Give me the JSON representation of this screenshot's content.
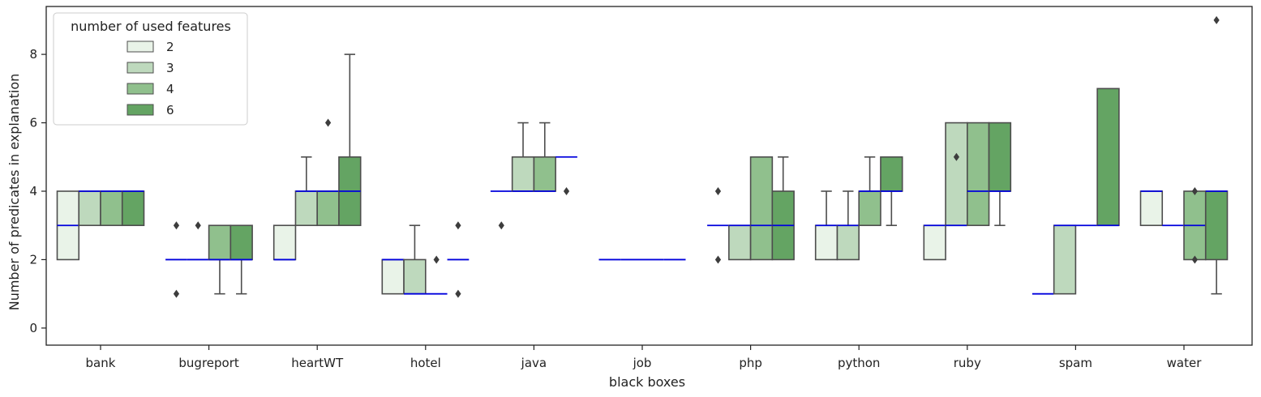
{
  "chart_data": {
    "type": "box",
    "xlabel": "black boxes",
    "ylabel": "Number of predicates in explanation",
    "ylim": [
      -0.5,
      9.4
    ],
    "yticks": [
      0,
      2,
      4,
      6,
      8
    ],
    "categories": [
      "bank",
      "bugreport",
      "heartWT",
      "hotel",
      "java",
      "job",
      "php",
      "python",
      "ruby",
      "spam",
      "water"
    ],
    "legend": {
      "title": "number of used features",
      "position": "top-left",
      "entries": [
        "2",
        "3",
        "4",
        "6"
      ]
    },
    "colors": {
      "2": "#e9f3e8",
      "3": "#bed9bd",
      "4": "#90c08d",
      "6": "#64a463",
      "median": "#0000dd",
      "edge": "#4d4d4d"
    },
    "series": [
      {
        "name": "2",
        "boxes": [
          {
            "q1": 2,
            "med": 3,
            "q3": 4,
            "lo": 2,
            "hi": 4,
            "fliers": []
          },
          {
            "q1": 2,
            "med": 2,
            "q3": 2,
            "lo": 2,
            "hi": 2,
            "fliers": [
              1,
              3
            ]
          },
          {
            "q1": 2,
            "med": 2,
            "q3": 3,
            "lo": 2,
            "hi": 3,
            "fliers": []
          },
          {
            "q1": 1,
            "med": 2,
            "q3": 2,
            "lo": 1,
            "hi": 2,
            "fliers": []
          },
          {
            "q1": 4,
            "med": 4,
            "q3": 4,
            "lo": 4,
            "hi": 4,
            "fliers": [
              3
            ]
          },
          {
            "q1": 2,
            "med": 2,
            "q3": 2,
            "lo": 2,
            "hi": 2,
            "fliers": []
          },
          {
            "q1": 3,
            "med": 3,
            "q3": 3,
            "lo": 3,
            "hi": 3,
            "fliers": [
              2,
              4
            ]
          },
          {
            "q1": 2,
            "med": 3,
            "q3": 3,
            "lo": 2,
            "hi": 4,
            "fliers": []
          },
          {
            "q1": 2,
            "med": 3,
            "q3": 3,
            "lo": 2,
            "hi": 3,
            "fliers": []
          },
          {
            "q1": 1,
            "med": 1,
            "q3": 1,
            "lo": 1,
            "hi": 1,
            "fliers": []
          },
          {
            "q1": 3,
            "med": 4,
            "q3": 4,
            "lo": 3,
            "hi": 4,
            "fliers": []
          }
        ]
      },
      {
        "name": "3",
        "boxes": [
          {
            "q1": 3,
            "med": 4,
            "q3": 4,
            "lo": 3,
            "hi": 4,
            "fliers": []
          },
          {
            "q1": 2,
            "med": 2,
            "q3": 2,
            "lo": 2,
            "hi": 2,
            "fliers": [
              3
            ]
          },
          {
            "q1": 3,
            "med": 4,
            "q3": 4,
            "lo": 3,
            "hi": 5,
            "fliers": []
          },
          {
            "q1": 1,
            "med": 1,
            "q3": 2,
            "lo": 1,
            "hi": 3,
            "fliers": []
          },
          {
            "q1": 4,
            "med": 4,
            "q3": 5,
            "lo": 4,
            "hi": 6,
            "fliers": []
          },
          {
            "q1": 2,
            "med": 2,
            "q3": 2,
            "lo": 2,
            "hi": 2,
            "fliers": []
          },
          {
            "q1": 2,
            "med": 3,
            "q3": 3,
            "lo": 2,
            "hi": 3,
            "fliers": []
          },
          {
            "q1": 2,
            "med": 3,
            "q3": 3,
            "lo": 2,
            "hi": 4,
            "fliers": []
          },
          {
            "q1": 3,
            "med": 3,
            "q3": 6,
            "lo": 3,
            "hi": 6,
            "fliers": [
              5
            ]
          },
          {
            "q1": 1,
            "med": 3,
            "q3": 3,
            "lo": 1,
            "hi": 3,
            "fliers": []
          },
          {
            "q1": 3,
            "med": 3,
            "q3": 3,
            "lo": 3,
            "hi": 3,
            "fliers": []
          }
        ]
      },
      {
        "name": "4",
        "boxes": [
          {
            "q1": 3,
            "med": 4,
            "q3": 4,
            "lo": 3,
            "hi": 4,
            "fliers": []
          },
          {
            "q1": 2,
            "med": 2,
            "q3": 3,
            "lo": 1,
            "hi": 3,
            "fliers": []
          },
          {
            "q1": 3,
            "med": 4,
            "q3": 4,
            "lo": 3,
            "hi": 4,
            "fliers": [
              6
            ]
          },
          {
            "q1": 1,
            "med": 1,
            "q3": 1,
            "lo": 1,
            "hi": 1,
            "fliers": [
              2
            ]
          },
          {
            "q1": 4,
            "med": 4,
            "q3": 5,
            "lo": 4,
            "hi": 6,
            "fliers": []
          },
          {
            "q1": 2,
            "med": 2,
            "q3": 2,
            "lo": 2,
            "hi": 2,
            "fliers": []
          },
          {
            "q1": 2,
            "med": 3,
            "q3": 5,
            "lo": 2,
            "hi": 5,
            "fliers": []
          },
          {
            "q1": 3,
            "med": 4,
            "q3": 4,
            "lo": 3,
            "hi": 5,
            "fliers": []
          },
          {
            "q1": 3,
            "med": 4,
            "q3": 6,
            "lo": 3,
            "hi": 6,
            "fliers": []
          },
          {
            "q1": 3,
            "med": 3,
            "q3": 3,
            "lo": 3,
            "hi": 3,
            "fliers": []
          },
          {
            "q1": 2,
            "med": 3,
            "q3": 4,
            "lo": 2,
            "hi": 4,
            "fliers": [
              2,
              4
            ]
          }
        ]
      },
      {
        "name": "6",
        "boxes": [
          {
            "q1": 3,
            "med": 4,
            "q3": 4,
            "lo": 3,
            "hi": 4,
            "fliers": []
          },
          {
            "q1": 2,
            "med": 2,
            "q3": 3,
            "lo": 1,
            "hi": 3,
            "fliers": []
          },
          {
            "q1": 3,
            "med": 4,
            "q3": 5,
            "lo": 3,
            "hi": 8,
            "fliers": []
          },
          {
            "q1": 2,
            "med": 2,
            "q3": 2,
            "lo": 2,
            "hi": 2,
            "fliers": [
              1,
              3
            ]
          },
          {
            "q1": 5,
            "med": 5,
            "q3": 5,
            "lo": 5,
            "hi": 5,
            "fliers": [
              4
            ]
          },
          {
            "q1": 2,
            "med": 2,
            "q3": 2,
            "lo": 2,
            "hi": 2,
            "fliers": []
          },
          {
            "q1": 2,
            "med": 3,
            "q3": 4,
            "lo": 2,
            "hi": 5,
            "fliers": []
          },
          {
            "q1": 4,
            "med": 4,
            "q3": 5,
            "lo": 3,
            "hi": 5,
            "fliers": []
          },
          {
            "q1": 4,
            "med": 4,
            "q3": 6,
            "lo": 3,
            "hi": 6,
            "fliers": []
          },
          {
            "q1": 3,
            "med": 3,
            "q3": 7,
            "lo": 3,
            "hi": 7,
            "fliers": []
          },
          {
            "q1": 2,
            "med": 4,
            "q3": 4,
            "lo": 1,
            "hi": 4,
            "fliers": [
              9
            ]
          }
        ]
      }
    ]
  }
}
